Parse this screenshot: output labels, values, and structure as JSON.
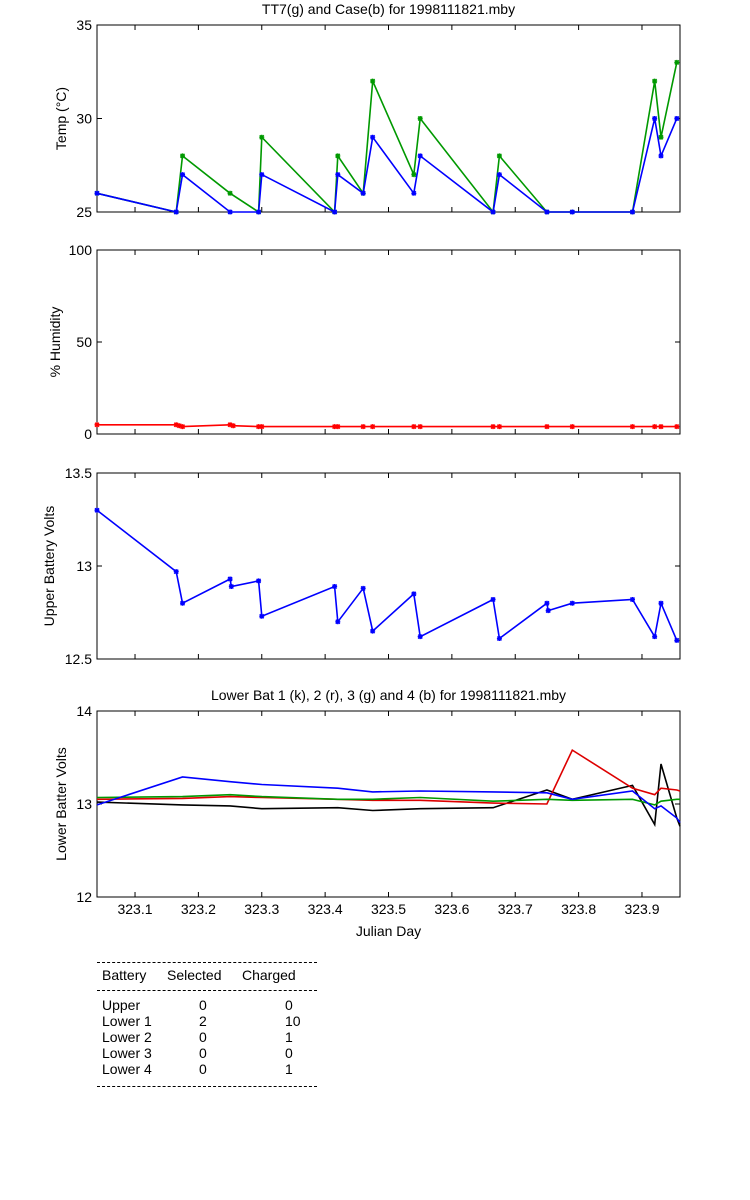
{
  "chart_data": [
    {
      "type": "line",
      "title": "TT7(g) and Case(b) for 1998111821.mby",
      "xlabel": "",
      "ylabel": "Temp  (°C)",
      "xlim": [
        323.04,
        323.96
      ],
      "ylim": [
        25,
        35
      ],
      "yticks": [
        25,
        30,
        35
      ],
      "x": [
        323.04,
        323.165,
        323.175,
        323.25,
        323.295,
        323.3,
        323.415,
        323.42,
        323.46,
        323.475,
        323.54,
        323.55,
        323.665,
        323.675,
        323.75,
        323.79,
        323.885,
        323.92,
        323.93,
        323.955
      ],
      "series": [
        {
          "name": "TT7",
          "color": "#009900",
          "values": [
            26,
            25,
            28,
            26,
            25,
            29,
            25,
            28,
            26,
            32,
            27,
            30,
            25,
            28,
            25,
            25,
            25,
            32,
            29,
            33
          ]
        },
        {
          "name": "Case",
          "color": "#0000ff",
          "values": [
            26,
            25,
            27,
            25,
            25,
            27,
            25,
            27,
            26,
            29,
            26,
            28,
            25,
            27,
            25,
            25,
            25,
            30,
            28,
            30
          ]
        }
      ]
    },
    {
      "type": "line",
      "title": "",
      "xlabel": "",
      "ylabel": "% Humidity",
      "xlim": [
        323.04,
        323.96
      ],
      "ylim": [
        0,
        100
      ],
      "yticks": [
        0,
        50,
        100
      ],
      "x": [
        323.04,
        323.165,
        323.17,
        323.175,
        323.25,
        323.255,
        323.295,
        323.3,
        323.415,
        323.42,
        323.46,
        323.475,
        323.54,
        323.55,
        323.665,
        323.675,
        323.75,
        323.79,
        323.885,
        323.92,
        323.93,
        323.955
      ],
      "series": [
        {
          "name": "Humidity",
          "color": "#ff0000",
          "values": [
            5,
            5,
            4.5,
            4,
            5,
            4.5,
            4,
            4,
            4,
            4,
            4,
            4,
            4,
            4,
            4,
            4,
            4,
            4,
            4,
            4,
            4,
            4
          ]
        }
      ]
    },
    {
      "type": "line",
      "title": "",
      "xlabel": "",
      "ylabel": "Upper Battery Volts",
      "xlim": [
        323.04,
        323.96
      ],
      "ylim": [
        12.5,
        13.5
      ],
      "yticks": [
        12.5,
        13,
        13.5
      ],
      "x": [
        323.04,
        323.165,
        323.175,
        323.25,
        323.252,
        323.295,
        323.3,
        323.415,
        323.42,
        323.46,
        323.475,
        323.54,
        323.55,
        323.665,
        323.675,
        323.75,
        323.752,
        323.79,
        323.885,
        323.92,
        323.93,
        323.955
      ],
      "series": [
        {
          "name": "Upper",
          "color": "#0000ff",
          "values": [
            13.3,
            12.97,
            12.8,
            12.93,
            12.89,
            12.92,
            12.73,
            12.89,
            12.7,
            12.88,
            12.65,
            12.85,
            12.62,
            12.82,
            12.61,
            12.8,
            12.76,
            12.8,
            12.82,
            12.62,
            12.8,
            12.6
          ]
        }
      ]
    },
    {
      "type": "line",
      "title": "Lower Bat 1 (k), 2 (r), 3 (g) and 4 (b) for 1998111821.mby",
      "xlabel": "Julian Day",
      "ylabel": "Lower Batter Volts",
      "xlim": [
        323.04,
        323.96
      ],
      "ylim": [
        12,
        14
      ],
      "yticks": [
        12,
        13,
        14
      ],
      "xticks": [
        "323.1",
        "323.2",
        "323.3",
        "323.4",
        "323.5",
        "323.6",
        "323.7",
        "323.8",
        "323.9"
      ],
      "x": [
        323.04,
        323.175,
        323.25,
        323.3,
        323.42,
        323.475,
        323.55,
        323.665,
        323.75,
        323.79,
        323.885,
        323.92,
        323.93,
        323.955,
        323.96
      ],
      "series": [
        {
          "name": "Lower 1",
          "color": "#000000",
          "values": [
            13.02,
            12.99,
            12.98,
            12.95,
            12.96,
            12.93,
            12.95,
            12.96,
            13.15,
            13.05,
            13.2,
            12.78,
            13.43,
            12.85,
            12.76
          ]
        },
        {
          "name": "Lower 2",
          "color": "#dd0000",
          "values": [
            13.05,
            13.06,
            13.08,
            13.07,
            13.05,
            13.04,
            13.04,
            13.01,
            13.0,
            13.58,
            13.17,
            13.1,
            13.17,
            13.15,
            13.14
          ]
        },
        {
          "name": "Lower 3",
          "color": "#009900",
          "values": [
            13.07,
            13.08,
            13.1,
            13.08,
            13.05,
            13.05,
            13.07,
            13.03,
            13.05,
            13.04,
            13.05,
            12.99,
            13.03,
            13.05,
            13.05
          ]
        },
        {
          "name": "Lower 4",
          "color": "#0000ff",
          "values": [
            12.99,
            13.29,
            13.24,
            13.21,
            13.17,
            13.13,
            13.14,
            13.13,
            13.12,
            13.05,
            13.14,
            12.95,
            12.98,
            12.85,
            12.8
          ]
        }
      ]
    }
  ],
  "table": {
    "headers": [
      "Battery",
      "Selected",
      "Charged"
    ],
    "rows": [
      {
        "battery": "Upper",
        "selected": "0",
        "charged": "0"
      },
      {
        "battery": "Lower 1",
        "selected": "2",
        "charged": "10"
      },
      {
        "battery": "Lower 2",
        "selected": "0",
        "charged": "1"
      },
      {
        "battery": "Lower 3",
        "selected": "0",
        "charged": "0"
      },
      {
        "battery": "Lower 4",
        "selected": "0",
        "charged": "1"
      }
    ]
  }
}
